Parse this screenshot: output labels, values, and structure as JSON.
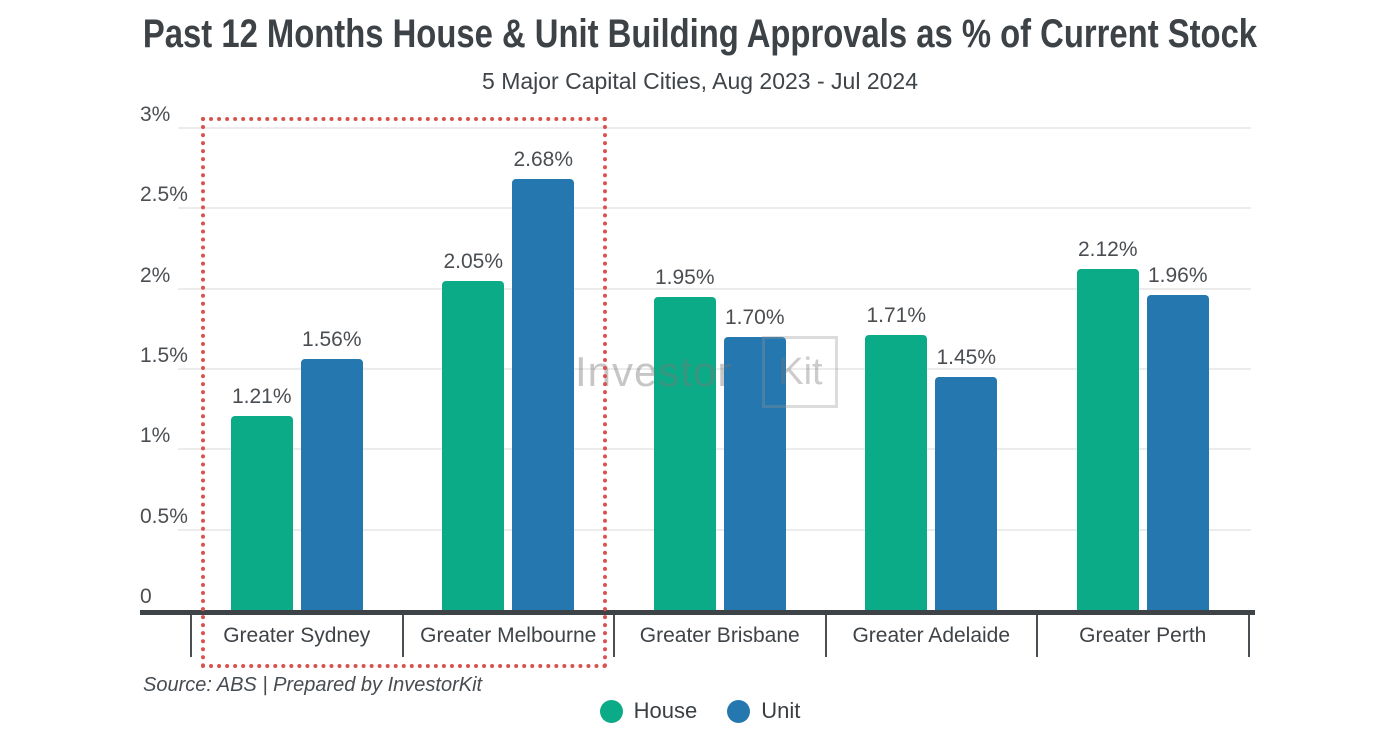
{
  "title": "Past 12 Months House & Unit Building Approvals as % of Current Stock",
  "subtitle": "5 Major Capital Cities, Aug 2023 - Jul 2024",
  "source_note": "Source: ABS | Prepared by InvestorKit",
  "watermark": {
    "text": "Investor",
    "boxed_text": "Kit"
  },
  "colors": {
    "house": "#0cab87",
    "unit": "#2478af",
    "highlight_box": "#d9534e"
  },
  "legend": [
    {
      "label": "House",
      "color_key": "house"
    },
    {
      "label": "Unit",
      "color_key": "unit"
    }
  ],
  "y_axis": {
    "tick_labels": [
      "0",
      "0.5%",
      "1%",
      "1.5%",
      "2%",
      "2.5%",
      "3%"
    ],
    "min": 0,
    "max": 3
  },
  "chart_data": {
    "type": "bar",
    "title": "Past 12 Months House & Unit Building Approvals as % of Current Stock",
    "subtitle": "5 Major Capital Cities, Aug 2023 - Jul 2024",
    "categories": [
      "Greater Sydney",
      "Greater Melbourne",
      "Greater Brisbane",
      "Greater Adelaide",
      "Greater Perth"
    ],
    "series": [
      {
        "name": "House",
        "color_key": "house",
        "values": [
          1.21,
          2.05,
          1.95,
          1.71,
          2.12
        ]
      },
      {
        "name": "Unit",
        "color_key": "unit",
        "values": [
          1.56,
          2.68,
          1.7,
          1.45,
          1.96
        ]
      }
    ],
    "data_labels": [
      [
        "1.21%",
        "2.05%",
        "1.95%",
        "1.71%",
        "2.12%"
      ],
      [
        "1.56%",
        "2.68%",
        "1.70%",
        "1.45%",
        "1.96%"
      ]
    ],
    "xlabel": "",
    "ylabel": "",
    "ylim": [
      0,
      3
    ],
    "grid": true,
    "legend_position": "bottom",
    "annotation": {
      "type": "highlight-box",
      "categories": [
        "Greater Sydney",
        "Greater Melbourne"
      ]
    }
  }
}
